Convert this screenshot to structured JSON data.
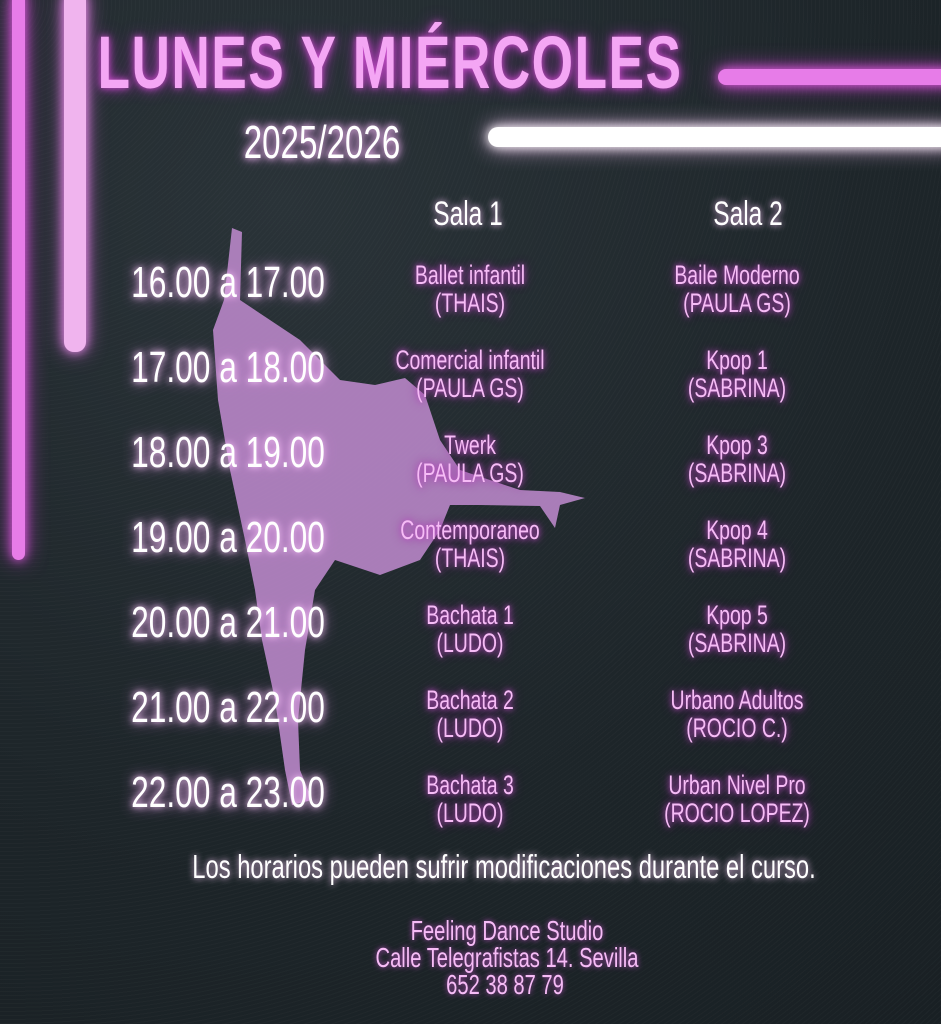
{
  "title": "LUNES Y MIÉRCOLES",
  "year": "2025/2026",
  "rooms": [
    "Sala 1",
    "Sala 2"
  ],
  "schedule": [
    {
      "time": "16.00 a 17.00",
      "sala1": {
        "class": "Ballet infantil",
        "teacher": "(THAIS)"
      },
      "sala2": {
        "class": "Baile Moderno",
        "teacher": "(PAULA GS)"
      }
    },
    {
      "time": "17.00 a 18.00",
      "sala1": {
        "class": "Comercial infantil",
        "teacher": "(PAULA GS)"
      },
      "sala2": {
        "class": "Kpop 1",
        "teacher": "(SABRINA)"
      }
    },
    {
      "time": "18.00 a 19.00",
      "sala1": {
        "class": "Twerk",
        "teacher": "(PAULA GS)"
      },
      "sala2": {
        "class": "Kpop 3",
        "teacher": "(SABRINA)"
      }
    },
    {
      "time": "19.00 a 20.00",
      "sala1": {
        "class": "Contemporaneo",
        "teacher": "(THAIS)"
      },
      "sala2": {
        "class": "Kpop 4",
        "teacher": "(SABRINA)"
      }
    },
    {
      "time": "20.00 a 21.00",
      "sala1": {
        "class": "Bachata 1",
        "teacher": "(LUDO)"
      },
      "sala2": {
        "class": "Kpop 5",
        "teacher": "(SABRINA)"
      }
    },
    {
      "time": "21.00 a 22.00",
      "sala1": {
        "class": "Bachata 2",
        "teacher": "(LUDO)"
      },
      "sala2": {
        "class": "Urbano Adultos",
        "teacher": "(ROCIO C.)"
      }
    },
    {
      "time": "22.00 a 23.00",
      "sala1": {
        "class": "Bachata 3",
        "teacher": "(LUDO)"
      },
      "sala2": {
        "class": "Urban Nivel Pro",
        "teacher": "(ROCIO LOPEZ)"
      }
    }
  ],
  "note": "Los horarios pueden sufrir modificaciones durante el curso.",
  "footer": {
    "studio": "Feeling Dance Studio",
    "address": "Calle Telegrafistas 14. Sevilla",
    "phone": "652 38 87 79"
  },
  "colors": {
    "neon_pink": "#e77ce8",
    "text_pink": "#f6bcf6",
    "silhouette": "#b584c4",
    "background": "#1f272c"
  }
}
